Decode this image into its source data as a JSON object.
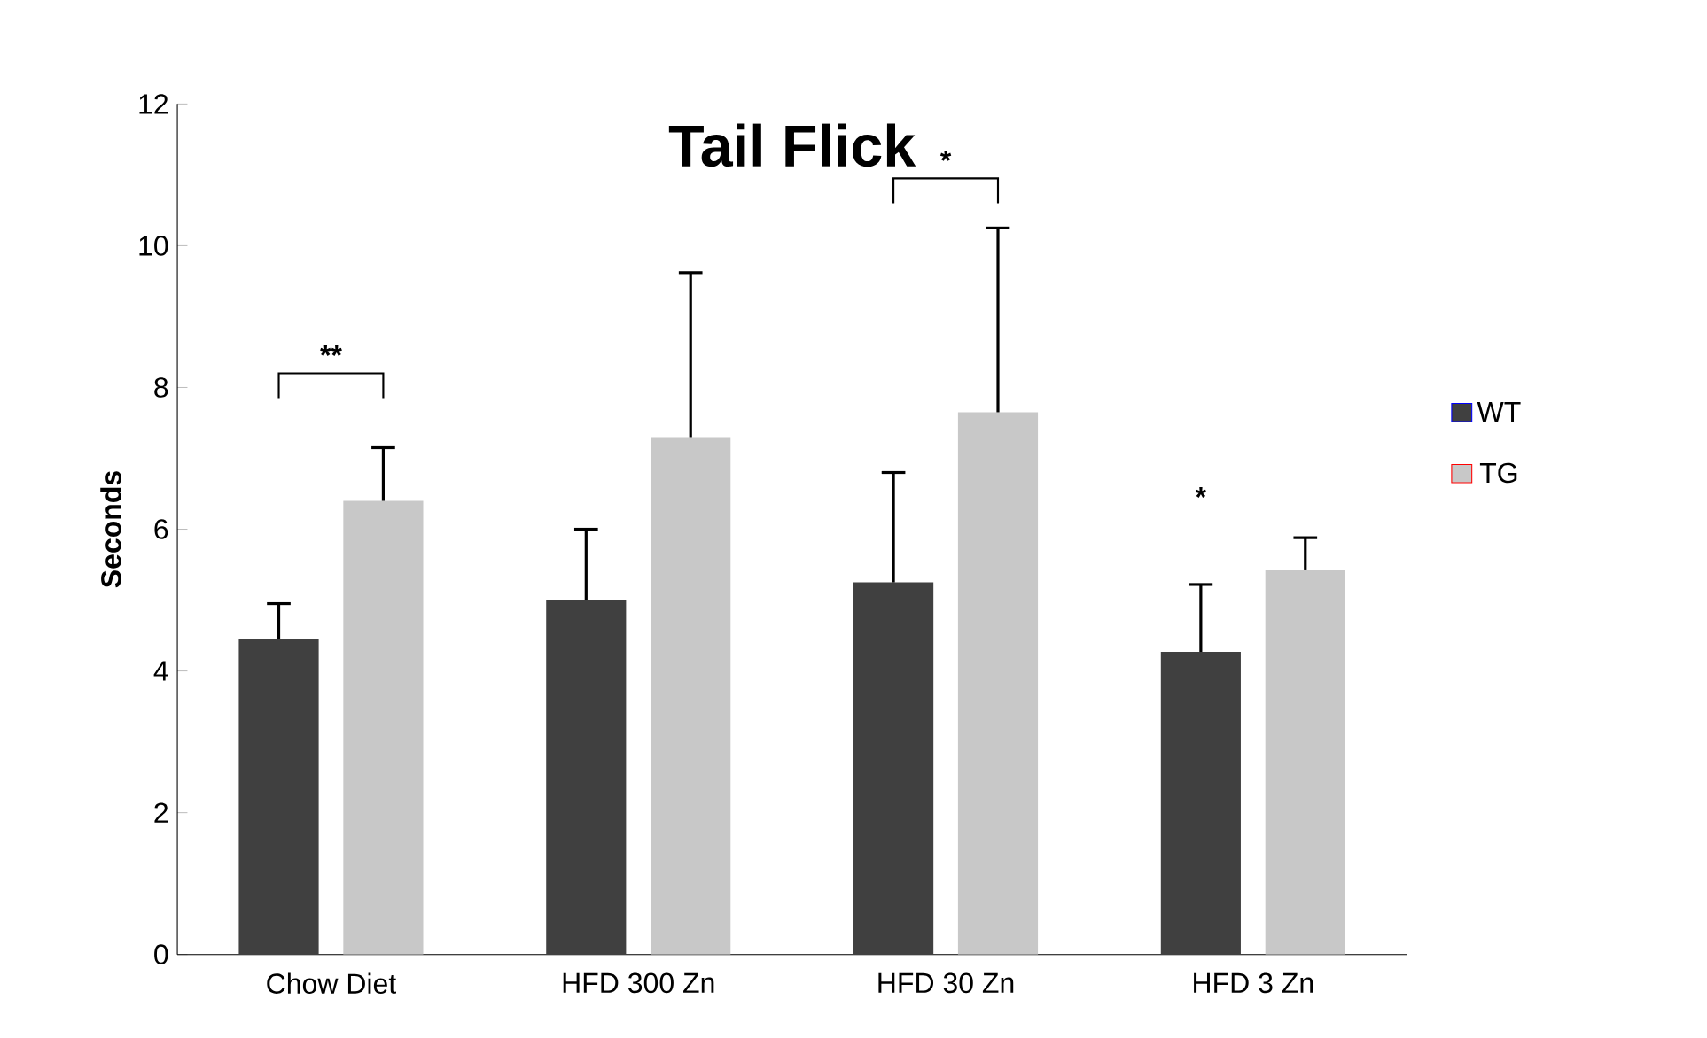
{
  "chart_data": {
    "type": "bar",
    "title": "Tail Flick",
    "ylabel": "Seconds",
    "categories": [
      "Chow Diet",
      "HFD 300 Zn",
      "HFD 30 Zn",
      "HFD 3 Zn"
    ],
    "series": [
      {
        "name": "WT",
        "color": "#404040",
        "values": [
          4.45,
          5.0,
          5.25,
          4.27
        ],
        "errors": [
          [
            4.45,
            4.95
          ],
          [
            5.0,
            6.0
          ],
          [
            5.25,
            6.8
          ],
          [
            4.27,
            5.22
          ]
        ]
      },
      {
        "name": "TG",
        "color": "#c8c8c8",
        "values": [
          6.4,
          7.3,
          7.65,
          5.42
        ],
        "errors": [
          [
            6.4,
            7.15
          ],
          [
            7.3,
            9.62
          ],
          [
            7.65,
            10.25
          ],
          [
            5.42,
            5.88
          ]
        ]
      }
    ],
    "ylim": [
      0,
      12
    ],
    "yticks": [
      0,
      2,
      4,
      6,
      8,
      10,
      12
    ],
    "grid": false,
    "legend": "right",
    "annotations": [
      "**",
      "*",
      "*"
    ]
  }
}
